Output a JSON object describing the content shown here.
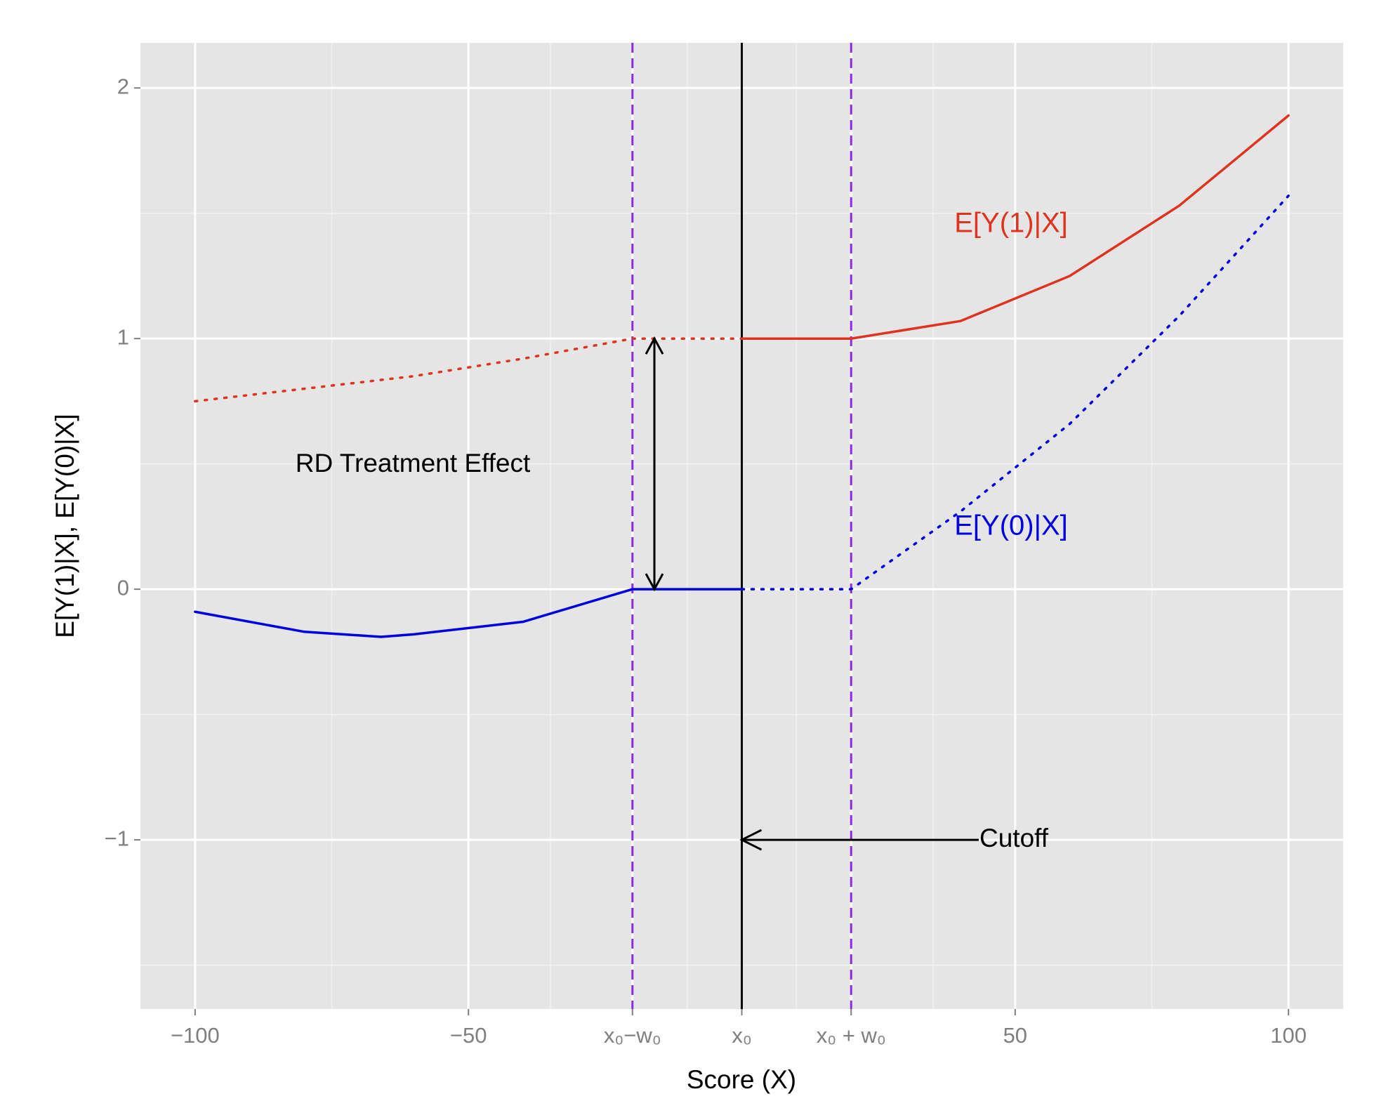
{
  "chart_data": {
    "type": "line",
    "xlabel": "Score (X)",
    "ylabel": "E[Y(1)|X], E[Y(0)|X]",
    "xlim": [
      -110,
      110
    ],
    "ylim": [
      -1.675,
      2.18
    ],
    "xticks": [
      {
        "value": -100,
        "label": "−100"
      },
      {
        "value": -50,
        "label": "−50"
      },
      {
        "value": -20,
        "label": "x₀−w₀"
      },
      {
        "value": 0,
        "label": "x₀"
      },
      {
        "value": 20,
        "label": "x₀ + w₀"
      },
      50,
      100
    ],
    "yticks": [
      {
        "value": -1,
        "label": "−1"
      },
      0,
      1,
      2
    ],
    "grid": true,
    "series": [
      {
        "name": "E[Y(1)|X]",
        "color": "#e0331f",
        "linestyle": "solid",
        "x": [
          0,
          20,
          40,
          60,
          80,
          100
        ],
        "values": [
          1,
          1,
          1.07,
          1.25,
          1.53,
          1.89
        ]
      },
      {
        "color": "#e0331f",
        "linestyle": "dotted",
        "x": [
          -100,
          -80,
          -60,
          -40,
          -20,
          0
        ],
        "values": [
          0.75,
          0.8,
          0.85,
          0.92,
          1,
          1
        ]
      },
      {
        "name": "E[Y(0)|X]",
        "color": "#0000e0",
        "linestyle": "solid",
        "x": [
          -100,
          -80,
          -66,
          -60,
          -40,
          -20,
          0
        ],
        "values": [
          -0.09,
          -0.17,
          -0.19,
          -0.18,
          -0.13,
          0,
          0
        ]
      },
      {
        "color": "#0000e0",
        "linestyle": "dotted",
        "x": [
          0,
          20,
          40,
          60,
          80,
          100
        ],
        "values": [
          0,
          0,
          0.31,
          0.66,
          1.09,
          1.57
        ]
      }
    ],
    "annotations": [
      "RD Treatment Effect",
      "Cutoff"
    ]
  }
}
